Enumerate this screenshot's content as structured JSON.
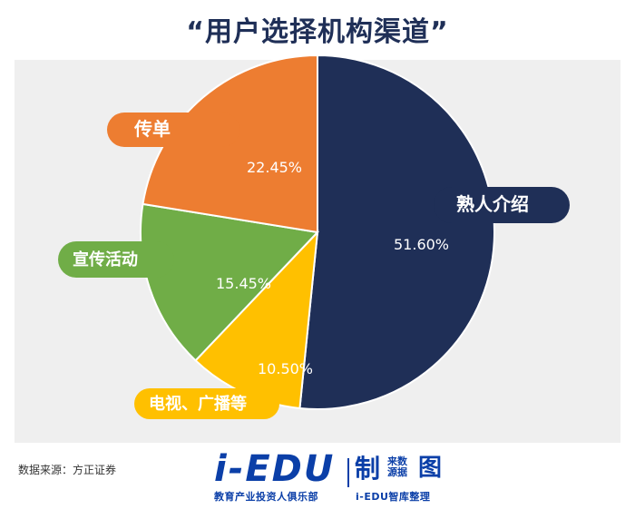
{
  "title": "“用户选择机构渠道”",
  "source_text": "数据来源：方正证券",
  "brand": {
    "logo_text": "i-EDU",
    "zhi": "制",
    "mini_lines": [
      "来数",
      "源据"
    ],
    "tu": "图",
    "sub_left": "教育产业投资人俱乐部",
    "sub_right": "i-EDU智库整理"
  },
  "colors": {
    "title": "#1f2f57",
    "navy": "#1f2f57",
    "orange": "#ed7d31",
    "yellow": "#ffc000",
    "green": "#70ad47",
    "brand": "#0b3fa8"
  },
  "chart_data": {
    "type": "pie",
    "title": "“用户选择机构渠道”",
    "slices": [
      {
        "label": "熟人介绍",
        "value": 51.6,
        "value_text": "51.60%",
        "color": "#1f2f57"
      },
      {
        "label": "电视、广播等",
        "value": 10.5,
        "value_text": "10.50%",
        "color": "#ffc000"
      },
      {
        "label": "宣传活动",
        "value": 15.45,
        "value_text": "15.45%",
        "color": "#70ad47"
      },
      {
        "label": "传单",
        "value": 22.45,
        "value_text": "22.45%",
        "color": "#ed7d31"
      }
    ],
    "legend": "none",
    "grid": false
  }
}
